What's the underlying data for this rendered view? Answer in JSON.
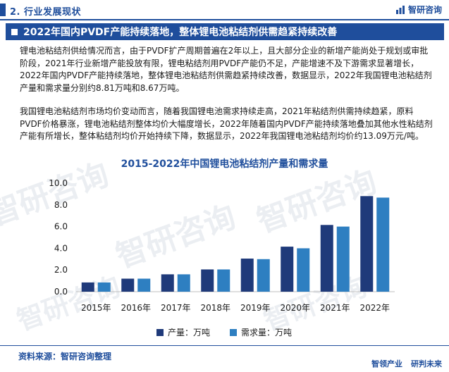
{
  "header": {
    "section_title": "2. 行业发展现状",
    "brand_name": "智研咨询",
    "logo_icon": "brand-logo-icon"
  },
  "headline": {
    "text": "2022年国内PVDF产能持续落地，整体锂电池粘结剂供需趋紧持续改善"
  },
  "paragraphs": {
    "p1": "锂电池粘结剂供给情况而言，由于PVDF扩产周期普遍在2年以上，且大部分企业的新增产能尚处于规划或审批阶段，2021年行业新增产能投放有限，锂电粘结剂用PVDF产能仍不足，产能增速不及下游需求显著增长，2022年国内PVDF产能持续落地，整体锂电池粘结剂供需趋紧持续改善，数据显示，2022年我国锂电池粘结剂产量和需求量分别约8.81万吨和8.67万吨。",
    "p2": "我国锂电池粘结剂市场均价变动而言，随着我国锂电池需求持续走高，2021年粘结剂供需持续趋紧，原料PVDF价格暴涨，锂电池粘结剂整体均价大幅度增长，2022年随着国内PVDF产能持续落地叠加其他水性粘结剂产能有所增长，整体粘结剂均价开始持续下降，数据显示，2022年我国锂电池粘结剂均价约13.09万元/吨。"
  },
  "chart_data": {
    "type": "bar",
    "title": "2015-2022年中国锂电池粘结剂产量和需求量",
    "categories": [
      "2015年",
      "2016年",
      "2017年",
      "2018年",
      "2019年",
      "2020年",
      "2021年",
      "2022年"
    ],
    "series": [
      {
        "name": "产量：万吨",
        "color": "#1f3a7a",
        "values": [
          0.85,
          1.2,
          1.6,
          2.05,
          3.05,
          4.15,
          6.15,
          8.81
        ]
      },
      {
        "name": "需求量：万吨",
        "color": "#2e7fc1",
        "values": [
          0.85,
          1.2,
          1.6,
          2.05,
          3.0,
          4.0,
          6.0,
          8.67
        ]
      }
    ],
    "yticks": [
      "0.0",
      "2.0",
      "4.0",
      "6.0",
      "8.0",
      "10.0"
    ],
    "ylim": [
      0,
      10
    ],
    "xlabel": "",
    "ylabel": "",
    "grid": false,
    "legend_position": "bottom"
  },
  "footer": {
    "source": "资料来源：智研咨询整理",
    "slogan_part1": "智领产业",
    "slogan_part2": "研判未来"
  },
  "watermark": {
    "text_cn": "智研咨询",
    "text_en": "www.chyxx.com"
  },
  "colors": {
    "brand_blue": "#1f4e9c",
    "series_dark": "#1f3a7a",
    "series_light": "#2e7fc1"
  }
}
